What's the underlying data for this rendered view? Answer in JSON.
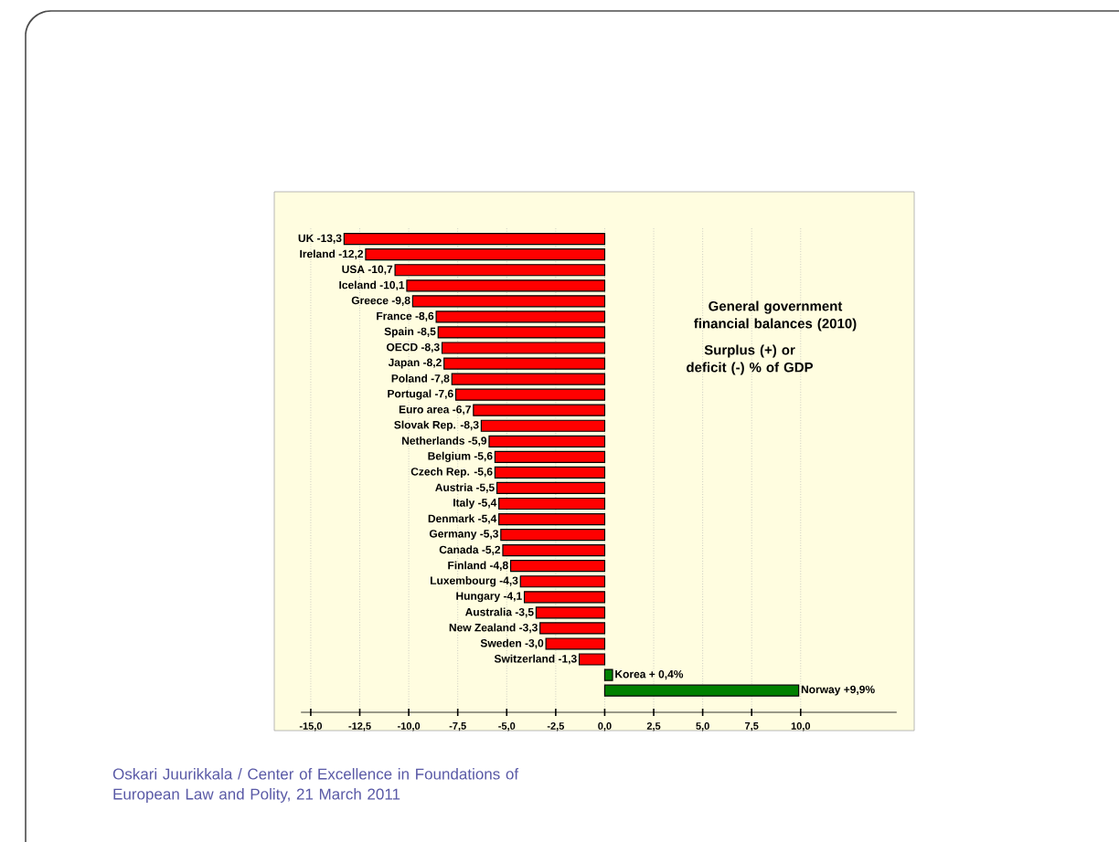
{
  "chart_data": {
    "type": "bar",
    "orientation": "horizontal",
    "title": "General government financial balances (2010)",
    "subtitle": "Surplus (+) or deficit (-) % of GDP",
    "categories": [
      "UK -13,3",
      "Ireland -12,2",
      "USA -10,7",
      "Iceland -10,1",
      "Greece -9,8",
      "France -8,6",
      "Spain -8,5",
      "OECD  -8,3",
      "Japan -8,2",
      "Poland -7,8",
      "Portugal -7,6",
      "Euro area -6,7",
      "Slovak Rep. -8,3",
      "Netherlands -5,9",
      "Belgium -5,6",
      "Czech Rep. -5,6",
      "Austria -5,5",
      "Italy -5,4",
      "Denmark -5,4",
      "Germany -5,3",
      "Canada -5,2",
      "Finland -4,8",
      "Luxembourg -4,3",
      "Hungary -4,1",
      "Australia -3,5",
      "New Zealand -3,3",
      "Sweden -3,0",
      "Switzerland -1,3",
      "Korea + 0,4%",
      "Norway +9,9%"
    ],
    "values": [
      -13.3,
      -12.2,
      -10.7,
      -10.1,
      -9.8,
      -8.6,
      -8.5,
      -8.3,
      -8.2,
      -7.8,
      -7.6,
      -6.7,
      -6.3,
      -5.9,
      -5.6,
      -5.6,
      -5.5,
      -5.4,
      -5.4,
      -5.3,
      -5.2,
      -4.8,
      -4.3,
      -4.1,
      -3.5,
      -3.3,
      -3.0,
      -1.3,
      0.4,
      9.9
    ],
    "colors": [
      "#ff0000",
      "#ff0000",
      "#ff0000",
      "#ff0000",
      "#ff0000",
      "#ff0000",
      "#ff0000",
      "#ff0000",
      "#ff0000",
      "#ff0000",
      "#ff0000",
      "#ff0000",
      "#ff0000",
      "#ff0000",
      "#ff0000",
      "#ff0000",
      "#ff0000",
      "#ff0000",
      "#ff0000",
      "#ff0000",
      "#ff0000",
      "#ff0000",
      "#ff0000",
      "#ff0000",
      "#ff0000",
      "#ff0000",
      "#ff0000",
      "#ff0000",
      "#008000",
      "#008000"
    ],
    "xlim": [
      -15.5,
      14.9
    ],
    "xticks": [
      {
        "value": -15,
        "label": "-15,0"
      },
      {
        "value": -12.5,
        "label": "-12,5"
      },
      {
        "value": -10,
        "label": "-10,0"
      },
      {
        "value": -7.5,
        "label": "-7,5"
      },
      {
        "value": -5,
        "label": "-5,0"
      },
      {
        "value": -2.5,
        "label": "-2,5"
      },
      {
        "value": 0,
        "label": "0,0"
      },
      {
        "value": 2.5,
        "label": "2,5"
      },
      {
        "value": 5,
        "label": "5,0"
      },
      {
        "value": 7.5,
        "label": "7,5"
      },
      {
        "value": 10,
        "label": "10,0"
      }
    ],
    "grid": "x",
    "annotations": [
      "Oskari Juurikkala / Center of Excellence in Foundations of European Law and Polity, 21 March 2011"
    ]
  }
}
